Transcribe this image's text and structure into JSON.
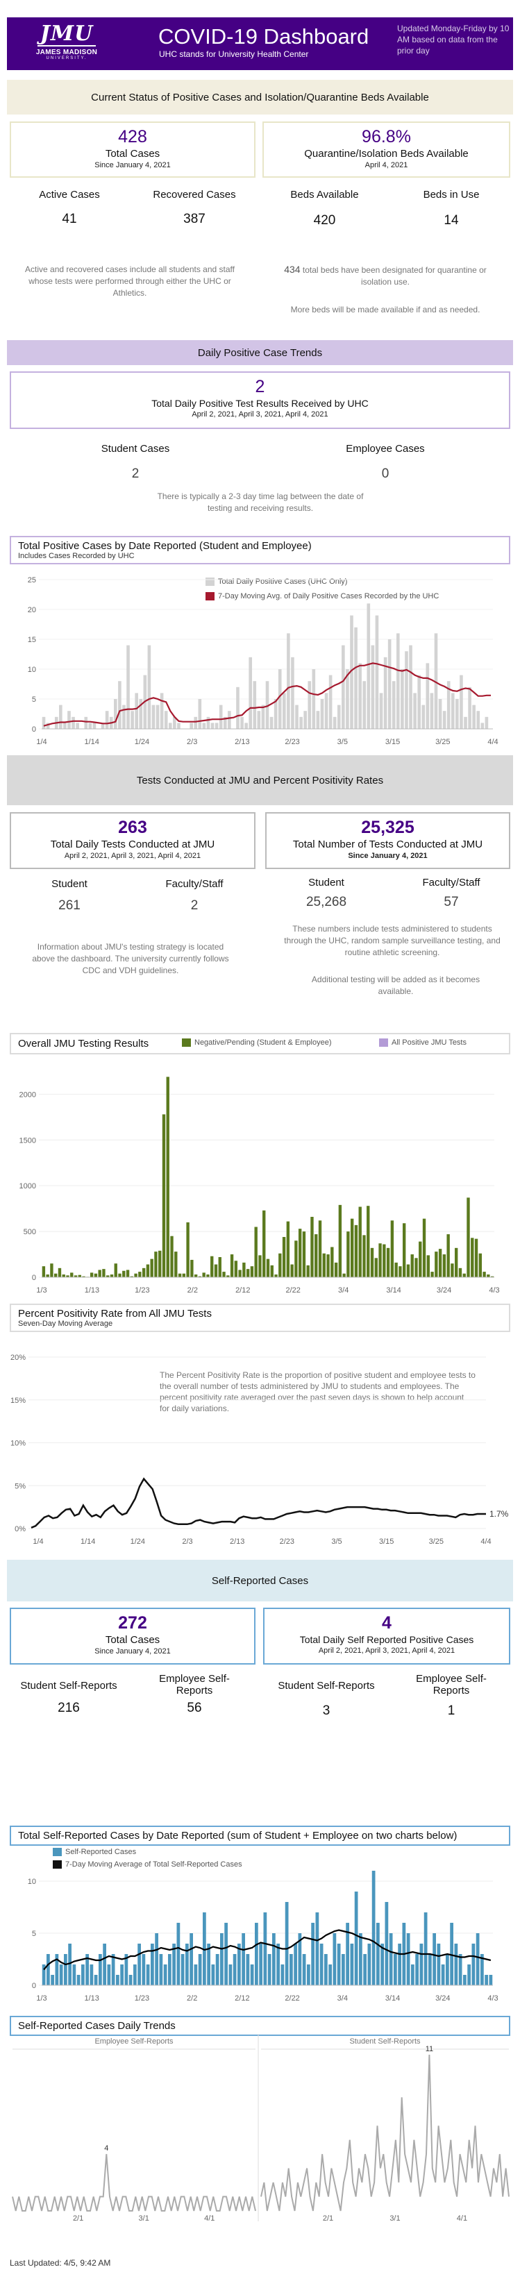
{
  "header": {
    "logo_text": "JMU",
    "logo_name": "JAMES MADISON",
    "logo_univ": "UNIVERSITY.",
    "title": "COVID-19 Dashboard",
    "subtitle": "UHC stands for University Health Center",
    "update_note": "Updated Monday-Friday by 10 AM based on data from the prior day"
  },
  "status": {
    "band": "Current Status of Positive Cases and Isolation/Quarantine Beds Available",
    "total_cases": "428",
    "total_cases_label": "Total Cases",
    "total_cases_since": "Since January 4, 2021",
    "beds_pct": "96.8%",
    "beds_pct_label": "Quarantine/Isolation Beds Available",
    "beds_pct_date": "April 4, 2021",
    "active_label": "Active Cases",
    "active_value": "41",
    "recovered_label": "Recovered Cases",
    "recovered_value": "387",
    "beds_avail_label": "Beds Available",
    "beds_avail_value": "420",
    "beds_use_label": "Beds in Use",
    "beds_use_value": "14",
    "left_note": "Active and recovered cases include all students and staff whose tests were performed through either the UHC or Athletics.",
    "beds_total": "434",
    "beds_total_note": "total beds have been designated for quarantine or isolation use.",
    "beds_more_note": "More beds will be made available if and as needed."
  },
  "daily": {
    "band": "Daily Positive Case Trends",
    "value": "2",
    "label": "Total Daily Positive Test Results Received by UHC",
    "dates": "April 2, 2021, April 3, 2021, April 4, 2021",
    "student_label": "Student Cases",
    "student_value": "2",
    "employee_label": "Employee Cases",
    "employee_value": "0",
    "lag_note": "There is typically a 2-3 day time lag between the date of testing and receiving results."
  },
  "tests": {
    "band": "Tests Conducted at JMU and Percent Positivity Rates",
    "daily_value": "263",
    "daily_label": "Total Daily Tests Conducted at JMU",
    "daily_dates": "April 2, 2021, April 3, 2021, April 4, 2021",
    "total_value": "25,325",
    "total_label": "Total Number of Tests Conducted at JMU",
    "total_since": "Since January 4, 2021",
    "student_label": "Student",
    "student_daily": "261",
    "faculty_label": "Faculty/Staff",
    "faculty_daily": "2",
    "student_total": "25,268",
    "faculty_total": "57",
    "strategy_note": "Information about JMU's testing strategy is located above the dashboard. The university currently follows CDC and VDH guidelines.",
    "numbers_note": "These numbers include tests administered to students through the UHC, random sample surveillance testing, and routine athletic screening.",
    "additional_note": "Additional testing will be added as it becomes available."
  },
  "positivity_note": "The Percent Positivity Rate is the proportion of positive student and employee tests to the overall number of tests administered by JMU to students and employees.   The percent positivity rate averaged over the past seven days is shown to help account for daily variations.",
  "self": {
    "band": "Self-Reported Cases",
    "total_value": "272",
    "total_label": "Total Cases",
    "total_since": "Since January 4, 2021",
    "daily_value": "4",
    "daily_label": "Total Daily Self Reported Positive Cases",
    "daily_dates": "April 2, 2021, April 3, 2021, April 4, 2021",
    "student_label": "Student Self-Reports",
    "student_total": "216",
    "employee_label": "Employee Self-Reports",
    "employee_total": "56",
    "student_daily": "3",
    "employee_daily": "1"
  },
  "footer": "Last Updated: 4/5, 9:42 AM",
  "colors": {
    "purple": "#450084",
    "bar_gray": "#d3d3d3",
    "avg_red": "#a6192e",
    "olive": "#5b7a1e",
    "lavender": "#b39bd6",
    "self_blue": "#4a96bd"
  },
  "chart_data": [
    {
      "id": "positive-cases",
      "type": "bar",
      "title": "Total Positive Cases by Date Reported (Student and Employee)",
      "subtitle": "Includes Cases Recorded by UHC",
      "legend": [
        "Total Daily Positive Cases (UHC Only)",
        "7-Day Moving Avg. of Daily Positive Cases Recorded by the UHC"
      ],
      "ylim": [
        0,
        25
      ],
      "yticks": [
        0,
        5,
        10,
        15,
        20,
        25
      ],
      "xticks": [
        "1/4",
        "1/14",
        "1/24",
        "2/3",
        "2/13",
        "2/23",
        "3/5",
        "3/15",
        "3/25",
        "4/4"
      ],
      "values": [
        2,
        1,
        0,
        2,
        4,
        1,
        3,
        2,
        1,
        0,
        2,
        1,
        1,
        0,
        1,
        3,
        2,
        5,
        8,
        4,
        14,
        3,
        6,
        5,
        9,
        14,
        4,
        4,
        6,
        3,
        1,
        2,
        1,
        0,
        0,
        1,
        2,
        5,
        1,
        2,
        1,
        1,
        4,
        2,
        3,
        0,
        7,
        2,
        1,
        12,
        8,
        3,
        4,
        8,
        2,
        5,
        10,
        6,
        16,
        12,
        4,
        2,
        3,
        8,
        10,
        3,
        5,
        6,
        9,
        2,
        4,
        14,
        10,
        19,
        17,
        11,
        8,
        21,
        14,
        19,
        6,
        12,
        15,
        8,
        16,
        10,
        13,
        14,
        6,
        9,
        4,
        11,
        6,
        16,
        5,
        3,
        8,
        6,
        5,
        9,
        2,
        7,
        4,
        3,
        1,
        2,
        0
      ],
      "avg": [
        0.5,
        0.7,
        0.9,
        1.0,
        1.1,
        1.1,
        1.2,
        1.3,
        1.3,
        1.3,
        1.2,
        1.2,
        1.1,
        1.0,
        0.9,
        0.9,
        1.0,
        1.2,
        3.0,
        3.2,
        3.3,
        3.3,
        3.4,
        4.0,
        4.6,
        5.0,
        5.2,
        5.0,
        4.7,
        4.5,
        3.0,
        2.0,
        1.3,
        1.2,
        1.2,
        1.2,
        1.2,
        1.3,
        1.4,
        1.5,
        1.6,
        1.6,
        1.6,
        1.7,
        1.8,
        1.9,
        2.2,
        2.3,
        3.0,
        3.5,
        3.5,
        3.6,
        3.6,
        3.8,
        4.2,
        4.6,
        5.5,
        6.2,
        6.9,
        7.1,
        7.2,
        7.0,
        6.5,
        6.0,
        5.8,
        5.7,
        6.0,
        6.5,
        6.9,
        7.3,
        7.6,
        8.0,
        9.0,
        9.8,
        10.3,
        10.6,
        10.6,
        10.8,
        11.0,
        10.9,
        10.7,
        10.5,
        10.3,
        10.1,
        9.8,
        9.7,
        9.9,
        9.5,
        9.0,
        8.7,
        8.5,
        8.5,
        8.2,
        7.8,
        7.4,
        7.1,
        6.7,
        6.4,
        6.3,
        6.6,
        6.8,
        6.7,
        6.1,
        5.5,
        5.5,
        5.6,
        5.6
      ]
    },
    {
      "id": "testing-results",
      "type": "bar",
      "title": "Overall JMU Testing Results",
      "legend": [
        "Negative/Pending (Student & Employee)",
        "All Positive JMU Tests"
      ],
      "ylim": [
        0,
        2200
      ],
      "yticks": [
        0,
        500,
        1000,
        1500,
        2000
      ],
      "xticks": [
        "1/3",
        "1/13",
        "1/23",
        "2/2",
        "2/12",
        "2/22",
        "3/4",
        "3/14",
        "3/24",
        "4/3"
      ],
      "values": [
        120,
        30,
        150,
        40,
        100,
        30,
        20,
        50,
        20,
        25,
        10,
        5,
        50,
        40,
        80,
        90,
        20,
        30,
        150,
        40,
        70,
        80,
        10,
        40,
        60,
        100,
        140,
        200,
        280,
        290,
        1780,
        2190,
        450,
        280,
        40,
        40,
        600,
        190,
        30,
        10,
        50,
        30,
        230,
        140,
        220,
        60,
        20,
        250,
        180,
        80,
        160,
        90,
        120,
        550,
        240,
        730,
        200,
        130,
        30,
        260,
        440,
        610,
        140,
        400,
        530,
        500,
        130,
        660,
        470,
        620,
        260,
        250,
        330,
        160,
        790,
        40,
        500,
        640,
        570,
        770,
        460,
        780,
        320,
        210,
        370,
        360,
        320,
        620,
        160,
        120,
        590,
        140,
        250,
        210,
        390,
        640,
        240,
        60,
        280,
        310,
        250,
        470,
        150,
        320,
        100,
        40,
        870,
        430,
        420,
        260,
        60,
        30,
        10
      ]
    },
    {
      "id": "positivity-rate",
      "type": "line",
      "title": "Percent Positivity Rate from All JMU Tests",
      "subtitle": "Seven-Day Moving Average",
      "ylim": [
        0,
        20
      ],
      "yticks": [
        "0%",
        "5%",
        "10%",
        "15%",
        "20%"
      ],
      "xticks": [
        "1/4",
        "1/14",
        "1/24",
        "2/3",
        "2/13",
        "2/23",
        "3/5",
        "3/15",
        "3/25",
        "4/4"
      ],
      "last_label": "1.7%",
      "values": [
        0.1,
        0.3,
        0.8,
        1.3,
        1.5,
        1.2,
        1.3,
        1.8,
        2.2,
        2.3,
        1.5,
        1.7,
        2.7,
        1.9,
        1.4,
        1.6,
        1.3,
        2.0,
        2.4,
        2.7,
        2.0,
        1.6,
        1.8,
        2.6,
        3.5,
        4.9,
        5.8,
        5.2,
        4.6,
        3.1,
        1.5,
        1.0,
        0.8,
        0.6,
        0.5,
        0.5,
        0.5,
        0.6,
        0.9,
        1.0,
        0.8,
        0.7,
        0.6,
        0.7,
        0.8,
        0.8,
        0.8,
        0.7,
        1.2,
        1.4,
        1.3,
        1.2,
        1.2,
        1.3,
        1.1,
        1.1,
        1.1,
        1.3,
        1.5,
        1.7,
        1.8,
        1.9,
        2.0,
        1.9,
        1.9,
        2.0,
        2.1,
        2.0,
        1.9,
        2.0,
        2.2,
        2.3,
        2.4,
        2.5,
        2.5,
        2.5,
        2.5,
        2.5,
        2.4,
        2.3,
        2.3,
        2.2,
        2.2,
        2.1,
        2.1,
        2.0,
        1.9,
        1.8,
        1.8,
        1.8,
        1.8,
        1.7,
        1.6,
        1.6,
        1.5,
        1.5,
        1.5,
        1.4,
        1.3,
        1.6,
        1.7,
        1.6,
        1.6,
        1.7,
        1.7,
        1.7
      ]
    },
    {
      "id": "self-reported",
      "type": "bar",
      "title": "Total Self-Reported Cases by Date Reported (sum of Student + Employee on two charts below)",
      "legend": [
        "Self-Reported Cases",
        "7-Day Moving Average of Total Self-Reported Cases"
      ],
      "ylim": [
        0,
        11
      ],
      "yticks": [
        0,
        5,
        10
      ],
      "xticks": [
        "1/3",
        "1/13",
        "1/23",
        "2/2",
        "2/12",
        "2/22",
        "3/4",
        "3/14",
        "3/24",
        "4/3"
      ],
      "values": [
        2,
        3,
        1,
        3,
        2,
        3,
        4,
        2,
        1,
        2,
        3,
        2,
        1,
        3,
        4,
        2,
        3,
        1,
        2,
        3,
        1,
        2,
        4,
        3,
        2,
        4,
        5,
        3,
        2,
        3,
        4,
        6,
        3,
        4,
        5,
        2,
        3,
        7,
        4,
        2,
        3,
        5,
        6,
        2,
        3,
        4,
        5,
        3,
        2,
        6,
        4,
        7,
        3,
        5,
        4,
        2,
        8,
        3,
        4,
        5,
        3,
        2,
        6,
        7,
        4,
        3,
        2,
        5,
        4,
        3,
        6,
        4,
        9,
        5,
        3,
        4,
        11,
        6,
        4,
        8,
        5,
        3,
        4,
        6,
        5,
        2,
        3,
        4,
        7,
        3,
        5,
        4,
        2,
        3,
        6,
        4,
        3,
        1,
        2,
        4,
        5,
        3,
        1,
        1
      ],
      "avg": [
        1.5,
        2.0,
        2.3,
        2.5,
        2.2,
        2.0,
        2.1,
        2.3,
        2.4,
        2.5,
        2.6,
        2.5,
        2.4,
        2.4,
        2.6,
        2.8,
        2.7,
        2.6,
        2.5,
        2.6,
        2.8,
        2.8,
        3.0,
        3.2,
        3.3,
        3.3,
        3.4,
        3.6,
        3.5,
        3.4,
        3.5,
        3.6,
        3.4,
        3.3,
        3.5,
        3.7,
        3.6,
        3.4,
        3.5,
        3.7,
        3.6,
        3.5,
        3.6,
        3.8,
        3.7,
        3.5,
        3.4,
        3.5,
        3.6,
        3.9,
        4.1,
        4.0,
        3.9,
        3.8,
        3.6,
        3.5,
        3.5,
        3.7,
        4.0,
        4.3,
        4.6,
        4.5,
        4.4,
        4.3,
        4.5,
        4.8,
        5.0,
        5.2,
        5.3,
        5.2,
        5.1,
        5.0,
        4.8,
        4.6,
        4.5,
        4.4,
        4.2,
        3.9,
        3.6,
        3.4,
        3.2,
        3.1,
        3.0,
        3.0,
        3.1,
        3.2,
        3.1,
        3.0,
        3.0,
        3.0,
        2.9,
        2.8,
        2.9,
        3.0,
        2.9,
        2.8,
        2.7,
        2.7,
        2.8,
        2.8,
        2.7,
        2.6,
        2.5,
        2.4
      ]
    },
    {
      "id": "self-daily-trends",
      "type": "line",
      "title": "Self-Reported Cases Daily Trends",
      "panels": [
        {
          "name": "Employee Self-Reports",
          "xticks": [
            "2/1",
            "3/1",
            "4/1"
          ],
          "peak_label": "4",
          "values": [
            1,
            0,
            1,
            0,
            0,
            1,
            0,
            1,
            1,
            0,
            1,
            0,
            0,
            1,
            0,
            1,
            0,
            1,
            1,
            0,
            1,
            0,
            1,
            0,
            0,
            1,
            0,
            1,
            1,
            4,
            1,
            0,
            1,
            0,
            1,
            1,
            0,
            0,
            1,
            0,
            1,
            0,
            1,
            1,
            0,
            1,
            0,
            0,
            1,
            0,
            1,
            0,
            1,
            1,
            0,
            1,
            0,
            1,
            0,
            1,
            1,
            0,
            1,
            0,
            0,
            1,
            1,
            0,
            1,
            0,
            1,
            0,
            1,
            0,
            1,
            0
          ]
        },
        {
          "name": "Student Self-Reports",
          "xticks": [
            "2/1",
            "3/1",
            "4/1"
          ],
          "peak_label": "11",
          "values": [
            1,
            2,
            0,
            1,
            2,
            1,
            0,
            2,
            1,
            3,
            1,
            0,
            2,
            1,
            2,
            3,
            1,
            0,
            2,
            1,
            4,
            2,
            1,
            3,
            2,
            1,
            0,
            2,
            3,
            5,
            2,
            1,
            3,
            2,
            4,
            3,
            1,
            2,
            6,
            3,
            4,
            2,
            1,
            3,
            5,
            2,
            8,
            4,
            3,
            2,
            5,
            3,
            1,
            2,
            4,
            11,
            3,
            2,
            6,
            4,
            2,
            3,
            5,
            2,
            1,
            4,
            3,
            2,
            5,
            3,
            6,
            2,
            4,
            3,
            2,
            1,
            3,
            2,
            4,
            1,
            3,
            1
          ]
        }
      ]
    }
  ]
}
